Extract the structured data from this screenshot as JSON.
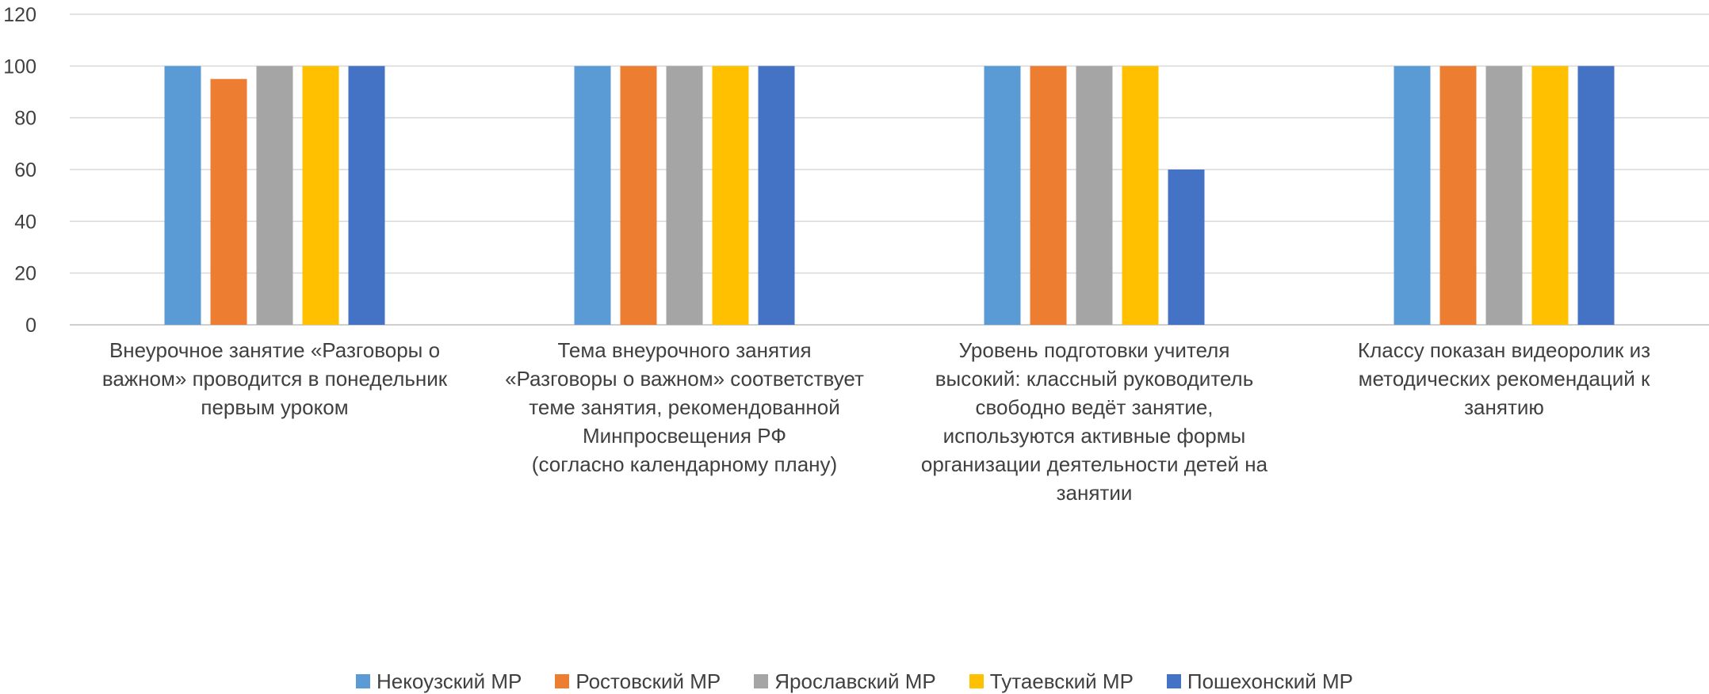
{
  "chart_data": {
    "type": "bar",
    "categories": [
      "Внеурочное занятие «Разговоры о важном» проводится в понедельник первым уроком",
      "Тема внеурочного занятия «Разговоры о важном» соответствует теме занятия, рекомендованной Минпросвещения РФ (согласно календарному плану)",
      "Уровень подготовки учителя высокий: классный руководитель свободно ведёт занятие, используются активные формы организации деятельности детей на занятии",
      "Классу показан видеоролик из методических рекомендаций к занятию"
    ],
    "category_lines": [
      [
        "Внеурочное занятие «Разговоры о",
        "важном» проводится в понедельник",
        "первым уроком"
      ],
      [
        "Тема внеурочного занятия",
        "«Разговоры о важном» соответствует",
        "теме занятия, рекомендованной",
        "Минпросвещения РФ",
        "(согласно календарному плану)"
      ],
      [
        "Уровень подготовки учителя",
        "высокий: классный руководитель",
        "свободно ведёт занятие,",
        "используются активные формы",
        "организации деятельности детей на",
        "занятии"
      ],
      [
        "Классу показан видеоролик из",
        "методических рекомендаций к",
        "занятию"
      ]
    ],
    "series": [
      {
        "name": "Некоузский МР",
        "color": "#5B9BD5",
        "values": [
          100,
          100,
          100,
          100
        ]
      },
      {
        "name": "Ростовский МР",
        "color": "#ED7D31",
        "values": [
          95,
          100,
          100,
          100
        ]
      },
      {
        "name": "Ярославский МР",
        "color": "#A5A5A5",
        "values": [
          100,
          100,
          100,
          100
        ]
      },
      {
        "name": "Тутаевский МР",
        "color": "#FFC000",
        "values": [
          100,
          100,
          100,
          100
        ]
      },
      {
        "name": "Пошехонский МР",
        "color": "#4472C4",
        "values": [
          100,
          100,
          60,
          100
        ]
      }
    ],
    "ylim": [
      0,
      120
    ],
    "yticks": [
      0,
      20,
      40,
      60,
      80,
      100,
      120
    ],
    "grid": true,
    "legend_position": "bottom"
  }
}
